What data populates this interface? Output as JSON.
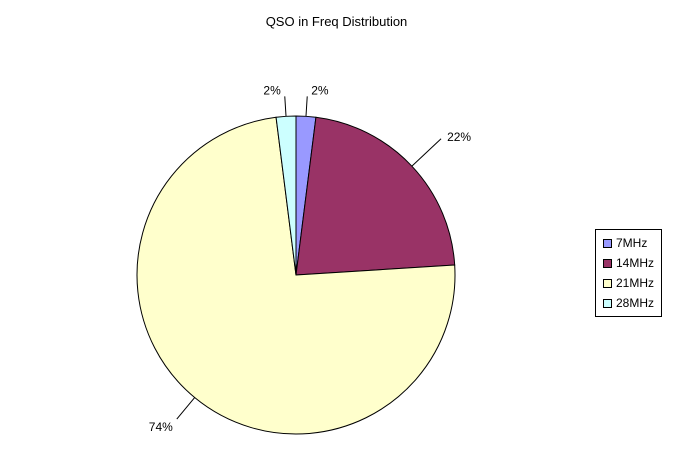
{
  "chart_data": {
    "type": "pie",
    "title": "QSO in Freq Distribution",
    "categories": [
      "7MHz",
      "14MHz",
      "21MHz",
      "28MHz"
    ],
    "values": [
      2,
      22,
      74,
      2
    ],
    "data_labels": [
      "2%",
      "22%",
      "74%",
      "2%"
    ],
    "colors": [
      "#9999ff",
      "#993366",
      "#ffffcc",
      "#ccffff"
    ],
    "legend_position": "right",
    "grid": false
  }
}
